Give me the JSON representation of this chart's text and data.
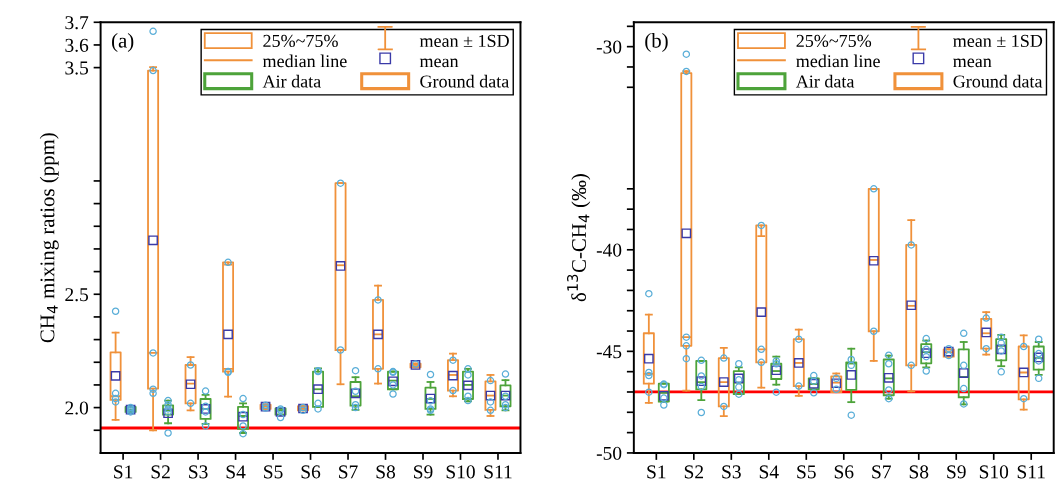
{
  "chart_data": [
    {
      "type": "box",
      "title": "(a)",
      "ylabel": "CH$_{4}$ mixing ratios (ppm)",
      "categories": [
        "S1",
        "S2",
        "S3",
        "S4",
        "S5",
        "S6",
        "S7",
        "S8",
        "S9",
        "S10",
        "S11"
      ],
      "ylim": [
        1.8,
        3.7
      ],
      "yticks": [
        {
          "value": 1.9,
          "label": null
        },
        {
          "value": 2.0,
          "label": "2.0"
        },
        {
          "value": 2.1,
          "label": null
        },
        {
          "value": 2.2,
          "label": null
        },
        {
          "value": 2.3,
          "label": null
        },
        {
          "value": 2.4,
          "label": null
        },
        2.5,
        {
          "value": 2.6,
          "label": null
        },
        {
          "value": 2.7,
          "label": null
        },
        {
          "value": 2.8,
          "label": null
        },
        {
          "value": 2.9,
          "label": null
        },
        {
          "value": 3.0,
          "label": null
        },
        3.5,
        3.6,
        3.7
      ],
      "legend": "top right",
      "annotations": [
        "25%~75%",
        "median line",
        "mean ± 1SD",
        "mean"
      ],
      "ref_lines": [
        {
          "axis": "y",
          "value": 1.91,
          "color": "#ff0000"
        }
      ],
      "series": [
        {
          "name": "Air data",
          "color": "#4da33a",
          "boxes": [
            {
              "low": 1.981,
              "q1": 1.981,
              "median": 1.991,
              "q3": 2.003,
              "high": 2.003,
              "mean": 1.991,
              "outliers": [
                2.0,
                1.988,
                1.981,
                1.994
              ]
            },
            {
              "low": 1.931,
              "q1": 1.969,
              "median": 1.988,
              "q3": 2.01,
              "high": 2.031,
              "mean": 1.975,
              "outliers": [
                2.031,
                2.013,
                1.994,
                1.981,
                1.888
              ]
            },
            {
              "low": 1.928,
              "q1": 1.95,
              "median": 1.994,
              "q3": 2.038,
              "high": 2.056,
              "mean": 1.994,
              "outliers": [
                2.073,
                2.006,
                1.981,
                1.919
              ]
            },
            {
              "low": 1.888,
              "q1": 1.906,
              "median": 1.963,
              "q3": 2.003,
              "high": 2.019,
              "mean": 1.96,
              "outliers": [
                2.04,
                1.969,
                1.919,
                1.885
              ]
            },
            {
              "low": 1.969,
              "q1": 1.969,
              "median": 1.988,
              "q3": 1.996,
              "high": 1.996,
              "mean": 1.981,
              "outliers": [
                1.994,
                1.988,
                1.956
              ]
            },
            {
              "low": 2.003,
              "q1": 2.003,
              "median": 2.081,
              "q3": 2.159,
              "high": 2.173,
              "mean": 2.081,
              "outliers": [
                2.163,
                2.159,
                2.019,
                1.994
              ]
            },
            {
              "low": 1.99,
              "q1": 2.009,
              "median": 2.05,
              "q3": 2.113,
              "high": 2.134,
              "mean": 2.063,
              "outliers": [
                2.163,
                2.072,
                2.013,
                2.0
              ]
            },
            {
              "low": 2.081,
              "q1": 2.081,
              "median": 2.119,
              "q3": 2.159,
              "high": 2.159,
              "mean": 2.116,
              "outliers": [
                2.159,
                2.156,
                2.1,
                2.06
              ]
            },
            {
              "low": 1.969,
              "q1": 1.994,
              "median": 2.038,
              "q3": 2.088,
              "high": 2.113,
              "mean": 2.04,
              "outliers": [
                2.146,
                2.03,
                1.994,
                1.988
              ]
            },
            {
              "low": 2.028,
              "q1": 2.038,
              "median": 2.1,
              "q3": 2.159,
              "high": 2.171,
              "mean": 2.098,
              "outliers": [
                2.171,
                2.144,
                2.05,
                2.031
              ]
            },
            {
              "low": 1.988,
              "q1": 2.006,
              "median": 2.053,
              "q3": 2.098,
              "high": 2.121,
              "mean": 2.053,
              "outliers": [
                2.148,
                2.05,
                2.013,
                2.0
              ]
            }
          ]
        },
        {
          "name": "Ground data",
          "color": "#f0913a",
          "boxes": [
            {
              "low": 1.946,
              "q1": 2.034,
              "median": 2.05,
              "q3": 2.244,
              "high": 2.331,
              "mean": 2.14,
              "outliers": [
                2.425,
                2.063,
                2.04,
                2.025
              ]
            },
            {
              "low": 1.9,
              "q1": 2.084,
              "median": 2.241,
              "q3": 3.487,
              "high": 3.502,
              "mean": 2.738,
              "outliers": [
                3.66,
                3.487,
                2.241,
                2.081,
                2.063
              ]
            },
            {
              "low": 1.988,
              "q1": 2.019,
              "median": 2.106,
              "q3": 2.188,
              "high": 2.223,
              "mean": 2.103,
              "outliers": [
                2.188,
                2.019
              ]
            },
            {
              "low": 2.048,
              "q1": 2.159,
              "median": 2.171,
              "q3": 2.641,
              "high": 2.631,
              "mean": 2.323,
              "outliers": [
                2.641,
                2.159,
                2.156
              ]
            },
            {
              "low": 1.994,
              "q1": 1.994,
              "median": 2.004,
              "q3": 2.013,
              "high": 2.013,
              "mean": 2.004,
              "outliers": [
                2.01,
                1.998
              ]
            },
            {
              "low": 1.988,
              "q1": 1.988,
              "median": 1.996,
              "q3": 2.006,
              "high": 2.006,
              "mean": 1.996,
              "outliers": [
                2.0,
                1.988
              ]
            },
            {
              "low": 2.103,
              "q1": 2.254,
              "median": 2.628,
              "q3": 2.99,
              "high": 2.99,
              "mean": 2.625,
              "outliers": [
                2.99,
                2.254
              ]
            },
            {
              "low": 2.106,
              "q1": 2.171,
              "median": 2.323,
              "q3": 2.475,
              "high": 2.538,
              "mean": 2.323,
              "outliers": [
                2.475,
                2.171
              ]
            },
            {
              "low": 2.178,
              "q1": 2.178,
              "median": 2.188,
              "q3": 2.194,
              "high": 2.194,
              "mean": 2.188,
              "outliers": [
                2.192
              ]
            },
            {
              "low": 2.05,
              "q1": 2.075,
              "median": 2.144,
              "q3": 2.209,
              "high": 2.238,
              "mean": 2.141,
              "outliers": [
                2.209,
                2.075
              ]
            },
            {
              "low": 1.963,
              "q1": 1.99,
              "median": 2.053,
              "q3": 2.116,
              "high": 2.144,
              "mean": 2.053,
              "outliers": [
                2.119,
                2.025,
                1.988
              ]
            }
          ]
        }
      ]
    },
    {
      "type": "box",
      "title": "(b)",
      "ylabel": "δ$^{13}$C-CH$_{4}$ (‰)",
      "categories": [
        "S1",
        "S2",
        "S3",
        "S4",
        "S5",
        "S6",
        "S7",
        "S8",
        "S9",
        "S10",
        "S11"
      ],
      "ylim": [
        -50,
        -28.8
      ],
      "yticks": [
        -50,
        {
          "value": -49,
          "label": null
        },
        {
          "value": -48,
          "label": null
        },
        {
          "value": -47,
          "label": null
        },
        {
          "value": -46,
          "label": null
        },
        -45,
        {
          "value": -44,
          "label": null
        },
        {
          "value": -43,
          "label": null
        },
        {
          "value": -42,
          "label": null
        },
        {
          "value": -41,
          "label": null
        },
        -40,
        {
          "value": -39,
          "label": null
        },
        {
          "value": -38,
          "label": null
        },
        {
          "value": -37,
          "label": null
        },
        {
          "value": -32,
          "label": null
        },
        {
          "value": -31,
          "label": null
        },
        -30,
        {
          "value": -29,
          "label": null
        }
      ],
      "legend": "top right",
      "annotations": [
        "25%~75%",
        "median line",
        "mean ± 1SD",
        "mean"
      ],
      "ref_lines": [
        {
          "axis": "y",
          "value": -47,
          "color": "#ff0000"
        }
      ],
      "series": [
        {
          "name": "Air data",
          "color": "#4da33a",
          "boxes": [
            {
              "low": -47.47,
              "q1": -47.47,
              "median": -47.04,
              "q3": -46.59,
              "high": -46.59,
              "mean": -47.19,
              "outliers": [
                -46.61,
                -46.64,
                -47.3,
                -47.64
              ]
            },
            {
              "low": -47.4,
              "q1": -46.87,
              "median": -46.51,
              "q3": -45.47,
              "high": -45.47,
              "mean": -46.47,
              "outliers": [
                -45.44,
                -46.21,
                -46.73,
                -48.01
              ]
            },
            {
              "low": -47.11,
              "q1": -47.11,
              "median": -46.54,
              "q3": -45.97,
              "high": -45.79,
              "mean": -46.33,
              "outliers": [
                -45.61,
                -46.4,
                -46.76,
                -47.11
              ]
            },
            {
              "low": -46.64,
              "q1": -46.36,
              "median": -45.97,
              "q3": -45.61,
              "high": -45.26,
              "mean": -45.93,
              "outliers": [
                -45.47,
                -45.61,
                -47.01
              ]
            },
            {
              "low": -46.87,
              "q1": -46.87,
              "median": -46.61,
              "q3": -46.33,
              "high": -46.33,
              "mean": -46.59,
              "outliers": [
                -46.19,
                -46.47,
                -47.04
              ]
            },
            {
              "low": -47.5,
              "q1": -46.9,
              "median": -45.6,
              "q3": -45.54,
              "high": -44.87,
              "mean": -46.16,
              "outliers": [
                -45.4,
                -45.69,
                -48.14
              ]
            },
            {
              "low": -47.33,
              "q1": -47.16,
              "median": -46.33,
              "q3": -45.4,
              "high": -45.21,
              "mean": -46.3,
              "outliers": [
                -45.19,
                -45.61,
                -46.9,
                -47.33
              ]
            },
            {
              "low": -45.79,
              "q1": -45.59,
              "median": -45.04,
              "q3": -44.64,
              "high": -44.47,
              "mean": -45.09,
              "outliers": [
                -44.37,
                -44.9,
                -45.26,
                -45.97
              ]
            },
            {
              "low": -47.61,
              "q1": -47.26,
              "median": -46.26,
              "q3": -44.9,
              "high": -44.54,
              "mean": -46.07,
              "outliers": [
                -44.11,
                -45.69,
                -46.83,
                -47.59
              ]
            },
            {
              "low": -45.73,
              "q1": -45.44,
              "median": -44.73,
              "q3": -44.4,
              "high": -44.19,
              "mean": -44.9,
              "outliers": [
                -44.3,
                -44.59,
                -44.98,
                -46.01
              ]
            },
            {
              "low": -46.16,
              "q1": -45.9,
              "median": -45.33,
              "q3": -44.76,
              "high": -44.54,
              "mean": -45.3,
              "outliers": [
                -44.4,
                -45.11,
                -45.47,
                -46.33
              ]
            }
          ]
        },
        {
          "name": "Ground data",
          "color": "#f0913a",
          "boxes": [
            {
              "low": -47.54,
              "q1": -46.59,
              "median": -46.11,
              "q3": -44.11,
              "high": -43.19,
              "mean": -45.36,
              "outliers": [
                -42.16,
                -46.04,
                -46.19,
                -47.01
              ]
            },
            {
              "low": -46.93,
              "q1": -44.73,
              "median": -44.3,
              "q3": -31.3,
              "high": -31.2,
              "mean": -39.19,
              "outliers": [
                -30.37,
                -31.22,
                -44.3,
                -44.73,
                -45.36
              ]
            },
            {
              "low": -48.19,
              "q1": -47.71,
              "median": -46.51,
              "q3": -45.33,
              "high": -44.83,
              "mean": -46.51,
              "outliers": [
                -45.33,
                -47.71
              ]
            },
            {
              "low": -46.79,
              "q1": -45.54,
              "median": -44.9,
              "q3": -38.8,
              "high": -39.33,
              "mean": -43.07,
              "outliers": [
                -38.8,
                -44.9,
                -45.54
              ]
            },
            {
              "low": -47.19,
              "q1": -46.71,
              "median": -45.57,
              "q3": -44.4,
              "high": -43.93,
              "mean": -45.57,
              "outliers": [
                -44.4,
                -46.71
              ]
            },
            {
              "low": -47.01,
              "q1": -47.01,
              "median": -46.54,
              "q3": -46.23,
              "high": -46.09,
              "mean": -46.57,
              "outliers": [
                -46.33,
                -46.87
              ]
            },
            {
              "low": -45.47,
              "q1": -44.01,
              "median": -40.5,
              "q3": -37.0,
              "high": -37.0,
              "mean": -40.54,
              "outliers": [
                -37.0,
                -44.01
              ]
            },
            {
              "low": -46.97,
              "q1": -45.69,
              "median": -42.76,
              "q3": -39.76,
              "high": -38.54,
              "mean": -42.73,
              "outliers": [
                -39.76,
                -45.69
              ]
            },
            {
              "low": -45.26,
              "q1": -45.26,
              "median": -45.04,
              "q3": -44.9,
              "high": -44.9,
              "mean": -45.01,
              "outliers": [
                -44.87,
                -45.21
              ]
            },
            {
              "low": -45.16,
              "q1": -44.87,
              "median": -44.11,
              "q3": -43.4,
              "high": -43.07,
              "mean": -44.07,
              "outliers": [
                -43.36,
                -44.87
              ]
            },
            {
              "low": -47.87,
              "q1": -47.36,
              "median": -46.04,
              "q3": -44.76,
              "high": -44.21,
              "mean": -46.04,
              "outliers": [
                -44.76,
                -47.33
              ]
            }
          ]
        }
      ]
    }
  ]
}
